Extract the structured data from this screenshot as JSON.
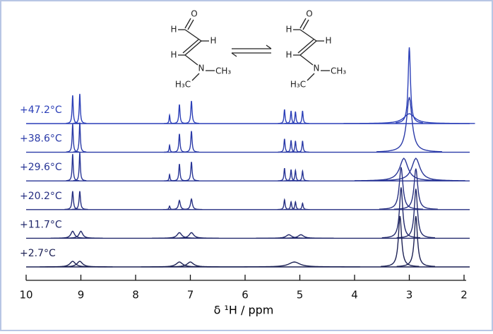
{
  "chart_data": {
    "type": "spectra",
    "xlabel": "δ ¹H / ppm",
    "xlim": [
      10,
      2
    ],
    "xticks": [
      10,
      9,
      8,
      7,
      6,
      5,
      4,
      3,
      2
    ],
    "structures": [
      {
        "o": "O",
        "h1": "H",
        "h2": "H",
        "h3": "H",
        "n": "N",
        "right_methyl": "CH₃",
        "left_methyl": "H₃C",
        "right_methyl_color": "#1aa8b0",
        "left_methyl_color": "#c0306e"
      },
      {
        "o": "O",
        "h1": "H",
        "h2": "H",
        "h3": "H",
        "n": "N",
        "right_methyl": "CH₃",
        "left_methyl": "H₃C",
        "right_methyl_color": "#c0306e",
        "left_methyl_color": "#1aa8b0"
      }
    ],
    "series": [
      {
        "name": "+47.2°C",
        "color": "#2b3fb8",
        "x": [
          9.15,
          9.02,
          7.38,
          7.2,
          6.98,
          5.28,
          5.16,
          5.08,
          4.95,
          3.0,
          3.0
        ],
        "values": [
          40,
          42,
          12,
          27,
          32,
          20,
          18,
          17,
          18,
          108,
          14
        ],
        "widths": [
          0.012,
          0.012,
          0.01,
          0.013,
          0.014,
          0.012,
          0.012,
          0.012,
          0.012,
          0.025,
          0.12
        ]
      },
      {
        "name": "+38.6°C",
        "color": "#2a3aa8",
        "x": [
          9.15,
          9.02,
          7.38,
          7.2,
          6.98,
          5.28,
          5.16,
          5.08,
          4.95,
          3.0
        ],
        "values": [
          40,
          42,
          10,
          26,
          30,
          19,
          17,
          16,
          16,
          78
        ],
        "widths": [
          0.012,
          0.012,
          0.01,
          0.013,
          0.014,
          0.012,
          0.012,
          0.012,
          0.012,
          0.06
        ]
      },
      {
        "name": "+29.6°C",
        "color": "#283596",
        "x": [
          9.15,
          9.02,
          7.38,
          7.2,
          6.98,
          5.28,
          5.16,
          5.08,
          4.95,
          3.1,
          2.88
        ],
        "values": [
          38,
          40,
          9,
          24,
          27,
          18,
          16,
          15,
          14,
          32,
          32
        ],
        "widths": [
          0.012,
          0.012,
          0.01,
          0.013,
          0.014,
          0.012,
          0.012,
          0.012,
          0.012,
          0.09,
          0.09
        ]
      },
      {
        "name": "+20.2°C",
        "color": "#262f82",
        "x": [
          9.15,
          9.02,
          7.38,
          7.2,
          6.98,
          5.28,
          5.16,
          5.08,
          4.95,
          3.15,
          2.88
        ],
        "values": [
          26,
          26,
          5,
          13,
          15,
          14,
          11,
          11,
          9,
          60,
          58
        ],
        "widths": [
          0.015,
          0.015,
          0.012,
          0.02,
          0.02,
          0.013,
          0.013,
          0.013,
          0.013,
          0.04,
          0.04
        ]
      },
      {
        "name": "+11.7°C",
        "color": "#22296c",
        "x": [
          9.15,
          9.0,
          7.2,
          6.98,
          5.2,
          4.98,
          3.15,
          2.88
        ],
        "values": [
          10,
          10,
          8,
          8,
          5,
          5,
          72,
          70
        ],
        "widths": [
          0.04,
          0.04,
          0.05,
          0.05,
          0.06,
          0.06,
          0.035,
          0.035
        ]
      },
      {
        "name": "+2.7°C",
        "color": "#1d2255",
        "x": [
          9.15,
          9.02,
          7.2,
          7.0,
          5.1,
          3.17,
          2.88
        ],
        "values": [
          8,
          8,
          7,
          7,
          7,
          72,
          72
        ],
        "widths": [
          0.06,
          0.06,
          0.07,
          0.07,
          0.12,
          0.035,
          0.035
        ]
      }
    ]
  }
}
